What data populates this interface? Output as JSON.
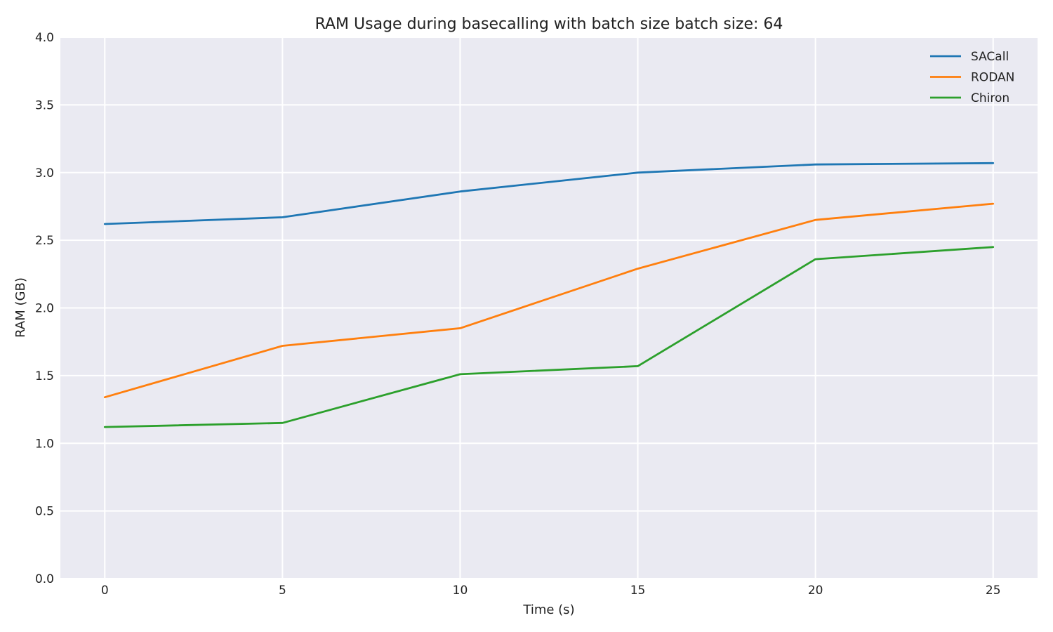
{
  "chart_data": {
    "type": "line",
    "title": "RAM Usage during basecalling with batch size batch size: 64",
    "xlabel": "Time (s)",
    "ylabel": "RAM (GB)",
    "x": [
      0,
      5,
      10,
      15,
      20,
      25
    ],
    "xlim": [
      -1.25,
      26.25
    ],
    "ylim": [
      0,
      4.0
    ],
    "xticks": [
      0,
      5,
      10,
      15,
      20,
      25
    ],
    "yticks": [
      0.0,
      0.5,
      1.0,
      1.5,
      2.0,
      2.5,
      3.0,
      3.5,
      4.0
    ],
    "xtick_labels": [
      "0",
      "5",
      "10",
      "15",
      "20",
      "25"
    ],
    "ytick_labels": [
      "0.0",
      "0.5",
      "1.0",
      "1.5",
      "2.0",
      "2.5",
      "3.0",
      "3.5",
      "4.0"
    ],
    "grid": true,
    "legend_position": "top-right",
    "background_color": "#eaeaf2",
    "series": [
      {
        "name": "SACall",
        "color": "#1f77b4",
        "values": [
          2.62,
          2.67,
          2.86,
          3.0,
          3.06,
          3.07
        ]
      },
      {
        "name": "RODAN",
        "color": "#ff7f0e",
        "values": [
          1.34,
          1.72,
          1.85,
          2.29,
          2.65,
          2.77
        ]
      },
      {
        "name": "Chiron",
        "color": "#2ca02c",
        "values": [
          1.12,
          1.15,
          1.51,
          1.57,
          2.36,
          2.45
        ]
      }
    ]
  }
}
